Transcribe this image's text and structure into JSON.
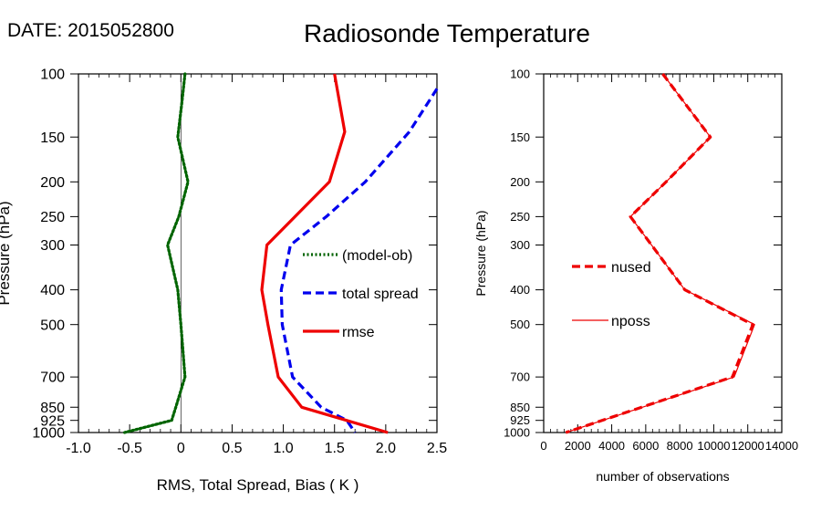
{
  "header": {
    "date_label": "DATE: 2015052800",
    "title": "Radiosonde Temperature"
  },
  "chart_data": [
    {
      "type": "line",
      "ylabel": "Pressure (hPa)",
      "xlabel": "RMS, Total Spread, Bias ( K )",
      "xlim": [
        -1.0,
        2.5
      ],
      "ylim": [
        1000,
        100
      ],
      "y_scale": "log",
      "x_ticks": [
        "-1.0",
        "-0.5",
        "0",
        "0.5",
        "1.0",
        "1.5",
        "2.0",
        "2.5"
      ],
      "y_ticks": [
        "100",
        "150",
        "200",
        "250",
        "300",
        "400",
        "500",
        "700",
        "850",
        "925",
        "1000"
      ],
      "legend_position": "center-right",
      "series": [
        {
          "name": "(model-ob)",
          "color": "#006400",
          "style": "dotted",
          "x": [
            0.04,
            0.01,
            -0.03,
            0.07,
            -0.02,
            -0.13,
            -0.03,
            0.0,
            0.04,
            -0.05,
            -0.09,
            -0.55
          ],
          "y": [
            100,
            120,
            150,
            200,
            250,
            300,
            400,
            500,
            700,
            850,
            925,
            1000
          ]
        },
        {
          "name": "total spread",
          "color": "#0000ee",
          "style": "dashed",
          "x": [
            2.5,
            2.23,
            1.8,
            1.42,
            1.07,
            0.98,
            0.99,
            1.09,
            1.37,
            1.62,
            1.7
          ],
          "y": [
            110,
            145,
            200,
            250,
            300,
            400,
            500,
            700,
            850,
            925,
            1000
          ]
        },
        {
          "name": "rmse",
          "color": "#ee0000",
          "style": "solid",
          "x": [
            1.5,
            1.6,
            1.45,
            0.84,
            0.79,
            0.85,
            0.95,
            1.18,
            2.02
          ],
          "y": [
            100,
            145,
            200,
            300,
            400,
            500,
            700,
            850,
            1000
          ]
        }
      ]
    },
    {
      "type": "line",
      "ylabel": "Pressure (hPa)",
      "xlabel": "number of observations",
      "xlim": [
        0,
        14000
      ],
      "ylim": [
        1000,
        100
      ],
      "y_scale": "log",
      "x_ticks": [
        "0",
        "2000",
        "4000",
        "6000",
        "8000",
        "10000",
        "12000",
        "14000"
      ],
      "y_ticks": [
        "100",
        "150",
        "200",
        "250",
        "300",
        "400",
        "500",
        "700",
        "850",
        "925",
        "1000"
      ],
      "legend_position": "center-left",
      "series": [
        {
          "name": "nused",
          "color": "#ee0000",
          "style": "dashed",
          "x": [
            7000,
            9800,
            7200,
            5100,
            8300,
            12300,
            11100,
            1300
          ],
          "y": [
            100,
            150,
            200,
            250,
            400,
            500,
            700,
            1000
          ]
        },
        {
          "name": "nposs",
          "color": "#ee0000",
          "style": "solid",
          "x": [
            7000,
            9800,
            7200,
            5100,
            8300,
            12400,
            11200,
            1300
          ],
          "y": [
            100,
            150,
            200,
            250,
            400,
            500,
            700,
            1000
          ]
        }
      ]
    }
  ]
}
